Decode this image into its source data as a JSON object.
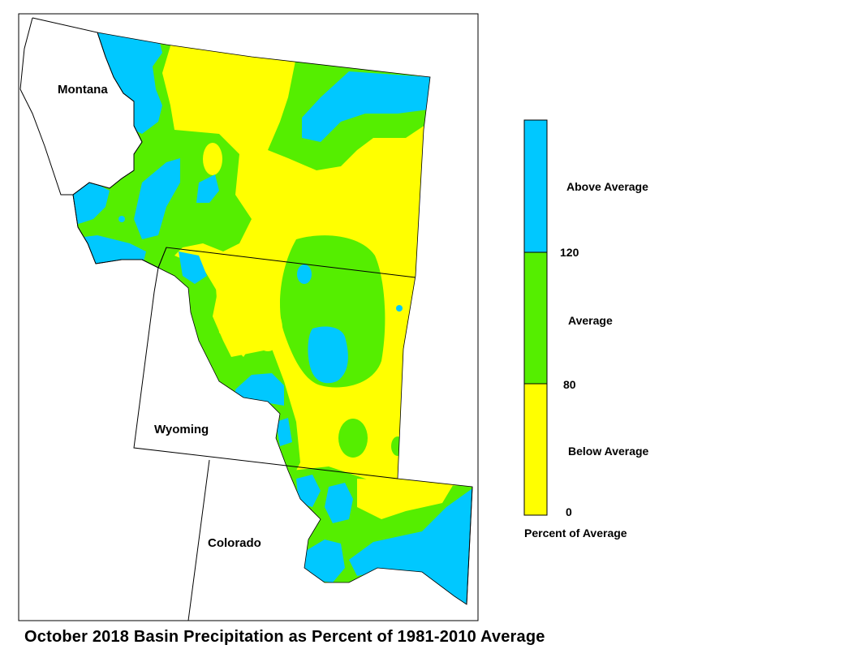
{
  "title": "October 2018 Basin Precipitation as Percent of 1981-2010 Average",
  "states": {
    "montana": "Montana",
    "wyoming": "Wyoming",
    "colorado": "Colorado"
  },
  "legend": {
    "title": "Percent of Average",
    "categories": [
      {
        "label": "Above Average",
        "color": "#00c8ff",
        "min": 120
      },
      {
        "label": "Average",
        "color": "#55ee00",
        "min": 80,
        "max": 120
      },
      {
        "label": "Below Average",
        "color": "#ffff00",
        "min": 0,
        "max": 80
      }
    ],
    "ticks": [
      "120",
      "80",
      "0"
    ]
  },
  "colors": {
    "above": "#00c8ff",
    "average": "#55ee00",
    "below": "#ffff00",
    "outline": "#000000"
  }
}
